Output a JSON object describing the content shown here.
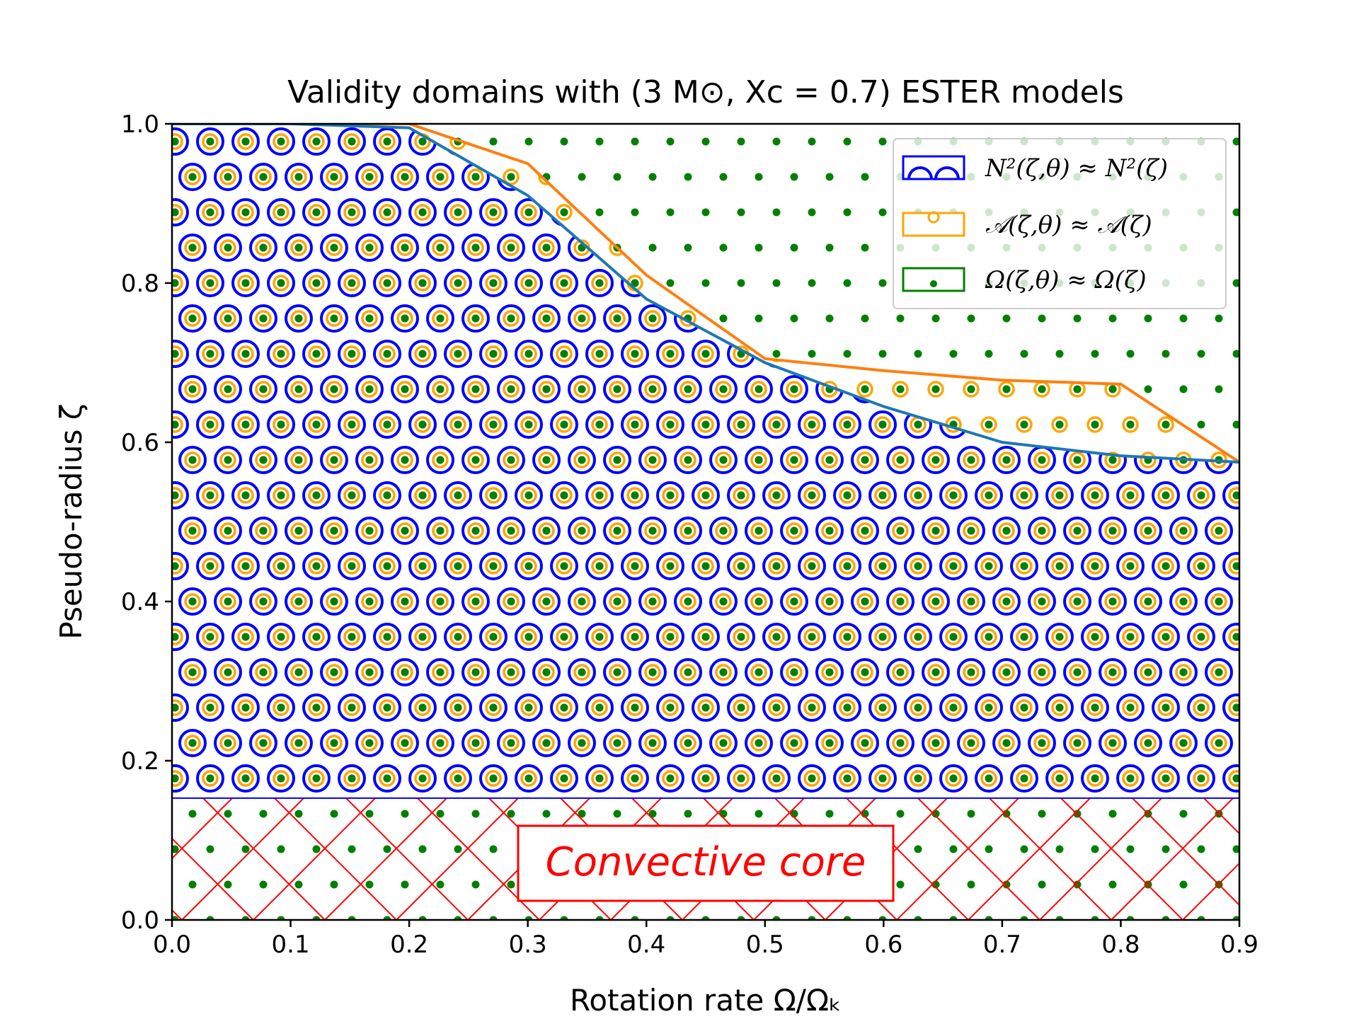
{
  "chart_data": {
    "type": "area",
    "title": "Validity domains with (3 M⊙, Xᴄ = 0.7) ESTER models",
    "xlabel": "Rotation rate Ω/Ωₖ",
    "ylabel": "Pseudo-radius ζ",
    "xlim": [
      0.0,
      0.9
    ],
    "ylim": [
      0.0,
      1.0
    ],
    "x_ticks": [
      "0.0",
      "0.1",
      "0.2",
      "0.3",
      "0.4",
      "0.5",
      "0.6",
      "0.7",
      "0.8",
      "0.9"
    ],
    "y_ticks": [
      "0.0",
      "0.2",
      "0.4",
      "0.6",
      "0.8",
      "1.0"
    ],
    "series": [
      {
        "name": "N²(ζ,θ) ≈ N²(ζ)",
        "color": "#0000ff",
        "boundary_color": "#1f77b4",
        "x": [
          0.0,
          0.1,
          0.2,
          0.3,
          0.4,
          0.5,
          0.6,
          0.7,
          0.8,
          0.9
        ],
        "y": [
          1.0,
          1.0,
          0.995,
          0.91,
          0.78,
          0.7,
          0.645,
          0.6,
          0.583,
          0.575
        ]
      },
      {
        "name": "𝒜(ζ,θ) ≈ 𝒜(ζ)",
        "color": "#ffa500",
        "boundary_color": "#ff7f0e",
        "x": [
          0.0,
          0.1,
          0.2,
          0.3,
          0.4,
          0.5,
          0.6,
          0.7,
          0.8,
          0.9
        ],
        "y": [
          1.0,
          1.0,
          1.0,
          0.95,
          0.81,
          0.705,
          0.69,
          0.678,
          0.673,
          0.575
        ]
      },
      {
        "name": "Ω(ζ,θ) ≈ Ω(ζ)",
        "color": "#008000",
        "x": [
          0.0,
          0.9
        ],
        "y": [
          1.0,
          1.0
        ]
      }
    ],
    "convective_core": {
      "label": "Convective core",
      "color": "#ff0000",
      "y_top": 0.153
    },
    "legend": {
      "location": "top-right",
      "entries": [
        "N²(ζ,θ) ≈ N²(ζ)",
        "𝒜(ζ,θ) ≈ 𝒜(ζ)",
        "Ω(ζ,θ) ≈ Ω(ζ)"
      ]
    }
  }
}
